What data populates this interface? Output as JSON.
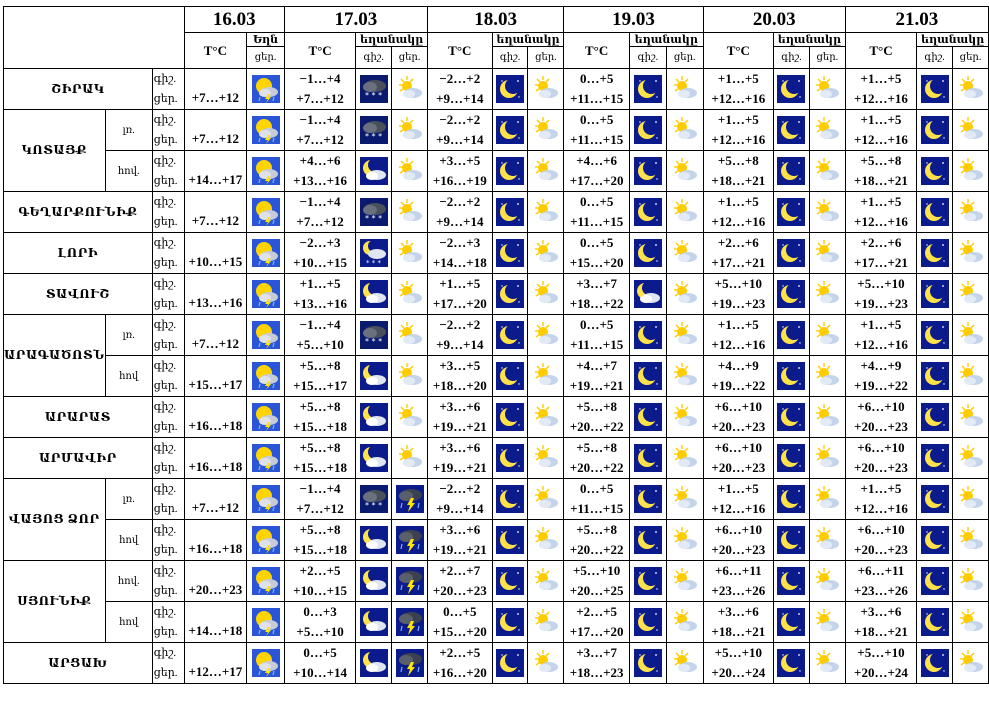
{
  "header": {
    "dates": [
      "16.03",
      "17.03",
      "18.03",
      "19.03",
      "20.03",
      "21.03"
    ],
    "temp_label": "T°C",
    "weather_label": "եղանակը",
    "weather_label_short": "Եղն",
    "night_label": "գիշ.",
    "day_label": "ցեր."
  },
  "icon_names": {
    "storm": "sun-cloud-lightning-icon",
    "snow": "snow-cloud-icon",
    "sun": "sun-cloud-icon",
    "moon": "moon-icon",
    "moon-cloud": "moon-cloud-icon",
    "moon-snow": "moon-cloud-snow-icon",
    "thunder": "thunderstorm-icon"
  },
  "regions": [
    {
      "name": "ՇԻՐԱԿ",
      "rows": [
        {
          "sub": "",
          "d0": "+7…+12",
          "i0": "storm",
          "days": [
            {
              "n": "−1…+4",
              "d": "+7…+12",
              "i1": "snow",
              "i2": "sun"
            },
            {
              "n": "−2…+2",
              "d": "+9…+14",
              "i1": "moon",
              "i2": "sun"
            },
            {
              "n": "0…+5",
              "d": "+11…+15",
              "i1": "moon",
              "i2": "sun"
            },
            {
              "n": "+1…+5",
              "d": "+12…+16",
              "i1": "moon",
              "i2": "sun"
            },
            {
              "n": "+1…+5",
              "d": "+12…+16",
              "i1": "moon",
              "i2": "sun"
            }
          ]
        }
      ]
    },
    {
      "name": "ԿՈՏԱՅՔ",
      "rows": [
        {
          "sub": "լռ.",
          "d0": "+7…+12",
          "i0": "storm",
          "days": [
            {
              "n": "−1…+4",
              "d": "+7…+12",
              "i1": "snow",
              "i2": "sun"
            },
            {
              "n": "−2…+2",
              "d": "+9…+14",
              "i1": "moon",
              "i2": "sun"
            },
            {
              "n": "0…+5",
              "d": "+11…+15",
              "i1": "moon",
              "i2": "sun"
            },
            {
              "n": "+1…+5",
              "d": "+12…+16",
              "i1": "moon",
              "i2": "sun"
            },
            {
              "n": "+1…+5",
              "d": "+12…+16",
              "i1": "moon",
              "i2": "sun"
            }
          ]
        },
        {
          "sub": "հով.",
          "d0": "+14…+17",
          "i0": "storm",
          "days": [
            {
              "n": "+4…+6",
              "d": "+13…+16",
              "i1": "moon-cloud",
              "i2": "sun"
            },
            {
              "n": "+3…+5",
              "d": "+16…+19",
              "i1": "moon",
              "i2": "sun"
            },
            {
              "n": "+4…+6",
              "d": "+17…+20",
              "i1": "moon",
              "i2": "sun"
            },
            {
              "n": "+5…+8",
              "d": "+18…+21",
              "i1": "moon",
              "i2": "sun"
            },
            {
              "n": "+5…+8",
              "d": "+18…+21",
              "i1": "moon",
              "i2": "sun"
            }
          ]
        }
      ]
    },
    {
      "name": "ԳԵՂԱՐՔՈՒՆԻՔ",
      "rows": [
        {
          "sub": "",
          "d0": "+7…+12",
          "i0": "storm",
          "days": [
            {
              "n": "−1…+4",
              "d": "+7…+12",
              "i1": "snow",
              "i2": "sun"
            },
            {
              "n": "−2…+2",
              "d": "+9…+14",
              "i1": "moon",
              "i2": "sun"
            },
            {
              "n": "0…+5",
              "d": "+11…+15",
              "i1": "moon",
              "i2": "sun"
            },
            {
              "n": "+1…+5",
              "d": "+12…+16",
              "i1": "moon",
              "i2": "sun"
            },
            {
              "n": "+1…+5",
              "d": "+12…+16",
              "i1": "moon",
              "i2": "sun"
            }
          ]
        }
      ]
    },
    {
      "name": "ԼՈՐԻ",
      "rows": [
        {
          "sub": "",
          "d0": "+10…+15",
          "i0": "storm",
          "days": [
            {
              "n": "−2…+3",
              "d": "+10…+15",
              "i1": "moon-snow",
              "i2": "sun"
            },
            {
              "n": "−2…+3",
              "d": "+14…+18",
              "i1": "moon",
              "i2": "sun"
            },
            {
              "n": "0…+5",
              "d": "+15…+20",
              "i1": "moon",
              "i2": "sun"
            },
            {
              "n": "+2…+6",
              "d": "+17…+21",
              "i1": "moon",
              "i2": "sun"
            },
            {
              "n": "+2…+6",
              "d": "+17…+21",
              "i1": "moon",
              "i2": "sun"
            }
          ]
        }
      ]
    },
    {
      "name": "ՏԱՎՈՒՇ",
      "rows": [
        {
          "sub": "",
          "d0": "+13…+16",
          "i0": "storm",
          "days": [
            {
              "n": "+1…+5",
              "d": "+13…+16",
              "i1": "moon-cloud",
              "i2": "sun"
            },
            {
              "n": "+1…+5",
              "d": "+17…+20",
              "i1": "moon",
              "i2": "sun"
            },
            {
              "n": "+3…+7",
              "d": "+18…+22",
              "i1": "moon-cloud",
              "i2": "sun"
            },
            {
              "n": "+5…+10",
              "d": "+19…+23",
              "i1": "moon",
              "i2": "sun"
            },
            {
              "n": "+5…+10",
              "d": "+19…+23",
              "i1": "moon",
              "i2": "sun"
            }
          ]
        }
      ]
    },
    {
      "name": "ԱՐԱԳԱԾՈՏՆ",
      "rows": [
        {
          "sub": "լռ.",
          "d0": "+7…+12",
          "i0": "storm",
          "days": [
            {
              "n": "−1…+4",
              "d": "+5…+10",
              "i1": "snow",
              "i2": "sun"
            },
            {
              "n": "−2…+2",
              "d": "+9…+14",
              "i1": "moon",
              "i2": "sun"
            },
            {
              "n": "0…+5",
              "d": "+11…+15",
              "i1": "moon",
              "i2": "sun"
            },
            {
              "n": "+1…+5",
              "d": "+12…+16",
              "i1": "moon",
              "i2": "sun"
            },
            {
              "n": "+1…+5",
              "d": "+12…+16",
              "i1": "moon",
              "i2": "sun"
            }
          ]
        },
        {
          "sub": "հով",
          "d0": "+15…+17",
          "i0": "storm",
          "days": [
            {
              "n": "+5…+8",
              "d": "+15…+17",
              "i1": "moon-cloud",
              "i2": "sun"
            },
            {
              "n": "+3…+5",
              "d": "+18…+20",
              "i1": "moon",
              "i2": "sun"
            },
            {
              "n": "+4…+7",
              "d": "+19…+21",
              "i1": "moon",
              "i2": "sun"
            },
            {
              "n": "+4…+9",
              "d": "+19…+22",
              "i1": "moon",
              "i2": "sun"
            },
            {
              "n": "+4…+9",
              "d": "+19…+22",
              "i1": "moon",
              "i2": "sun"
            }
          ]
        }
      ]
    },
    {
      "name": "ԱՐԱՐԱՏ",
      "rows": [
        {
          "sub": "",
          "d0": "+16…+18",
          "i0": "storm",
          "days": [
            {
              "n": "+5…+8",
              "d": "+15…+18",
              "i1": "moon-cloud",
              "i2": "sun"
            },
            {
              "n": "+3…+6",
              "d": "+19…+21",
              "i1": "moon",
              "i2": "sun"
            },
            {
              "n": "+5…+8",
              "d": "+20…+22",
              "i1": "moon",
              "i2": "sun"
            },
            {
              "n": "+6…+10",
              "d": "+20…+23",
              "i1": "moon",
              "i2": "sun"
            },
            {
              "n": "+6…+10",
              "d": "+20…+23",
              "i1": "moon",
              "i2": "sun"
            }
          ]
        }
      ]
    },
    {
      "name": "ԱՐՄԱՎԻՐ",
      "rows": [
        {
          "sub": "",
          "d0": "+16…+18",
          "i0": "storm",
          "days": [
            {
              "n": "+5…+8",
              "d": "+15…+18",
              "i1": "moon-cloud",
              "i2": "sun"
            },
            {
              "n": "+3…+6",
              "d": "+19…+21",
              "i1": "moon",
              "i2": "sun"
            },
            {
              "n": "+5…+8",
              "d": "+20…+22",
              "i1": "moon",
              "i2": "sun"
            },
            {
              "n": "+6…+10",
              "d": "+20…+23",
              "i1": "moon",
              "i2": "sun"
            },
            {
              "n": "+6…+10",
              "d": "+20…+23",
              "i1": "moon",
              "i2": "sun"
            }
          ]
        }
      ]
    },
    {
      "name": "ՎԱՅՈՑ ՁՈՐ",
      "rows": [
        {
          "sub": "լռ.",
          "d0": "+7…+12",
          "i0": "storm",
          "days": [
            {
              "n": "−1…+4",
              "d": "+7…+12",
              "i1": "snow",
              "i2": "thunder"
            },
            {
              "n": "−2…+2",
              "d": "+9…+14",
              "i1": "moon",
              "i2": "sun"
            },
            {
              "n": "0…+5",
              "d": "+11…+15",
              "i1": "moon",
              "i2": "sun"
            },
            {
              "n": "+1…+5",
              "d": "+12…+16",
              "i1": "moon",
              "i2": "sun"
            },
            {
              "n": "+1…+5",
              "d": "+12…+16",
              "i1": "moon",
              "i2": "sun"
            }
          ]
        },
        {
          "sub": "հով",
          "d0": "+16…+18",
          "i0": "storm",
          "days": [
            {
              "n": "+5…+8",
              "d": "+15…+18",
              "i1": "moon-cloud",
              "i2": "thunder"
            },
            {
              "n": "+3…+6",
              "d": "+19…+21",
              "i1": "moon",
              "i2": "sun"
            },
            {
              "n": "+5…+8",
              "d": "+20…+22",
              "i1": "moon",
              "i2": "sun"
            },
            {
              "n": "+6…+10",
              "d": "+20…+23",
              "i1": "moon",
              "i2": "sun"
            },
            {
              "n": "+6…+10",
              "d": "+20…+23",
              "i1": "moon",
              "i2": "sun"
            }
          ]
        }
      ]
    },
    {
      "name": "ՍՅՈՒՆԻՔ",
      "rows": [
        {
          "sub": "հով.",
          "d0": "+20…+23",
          "i0": "storm",
          "days": [
            {
              "n": "+2…+5",
              "d": "+10…+15",
              "i1": "moon-cloud",
              "i2": "thunder"
            },
            {
              "n": "+2…+7",
              "d": "+20…+23",
              "i1": "moon",
              "i2": "sun"
            },
            {
              "n": "+5…+10",
              "d": "+20…+25",
              "i1": "moon",
              "i2": "sun"
            },
            {
              "n": "+6…+11",
              "d": "+23…+26",
              "i1": "moon",
              "i2": "sun"
            },
            {
              "n": "+6…+11",
              "d": "+23…+26",
              "i1": "moon",
              "i2": "sun"
            }
          ]
        },
        {
          "sub": "հով",
          "d0": "+14…+18",
          "i0": "storm",
          "days": [
            {
              "n": "0…+3",
              "d": "+5…+10",
              "i1": "moon-cloud",
              "i2": "thunder"
            },
            {
              "n": "0…+5",
              "d": "+15…+20",
              "i1": "moon",
              "i2": "sun"
            },
            {
              "n": "+2…+5",
              "d": "+17…+20",
              "i1": "moon",
              "i2": "sun"
            },
            {
              "n": "+3…+6",
              "d": "+18…+21",
              "i1": "moon",
              "i2": "sun"
            },
            {
              "n": "+3…+6",
              "d": "+18…+21",
              "i1": "moon",
              "i2": "sun"
            }
          ]
        }
      ]
    },
    {
      "name": "ԱՐՑԱԽ",
      "rows": [
        {
          "sub": "",
          "d0": "+12…+17",
          "i0": "storm",
          "days": [
            {
              "n": "0…+5",
              "d": "+10…+14",
              "i1": "moon-cloud",
              "i2": "thunder"
            },
            {
              "n": "+2…+5",
              "d": "+16…+20",
              "i1": "moon",
              "i2": "sun"
            },
            {
              "n": "+3…+7",
              "d": "+18…+23",
              "i1": "moon",
              "i2": "sun"
            },
            {
              "n": "+5…+10",
              "d": "+20…+24",
              "i1": "moon",
              "i2": "sun"
            },
            {
              "n": "+5…+10",
              "d": "+20…+24",
              "i1": "moon",
              "i2": "sun"
            }
          ]
        }
      ]
    }
  ]
}
